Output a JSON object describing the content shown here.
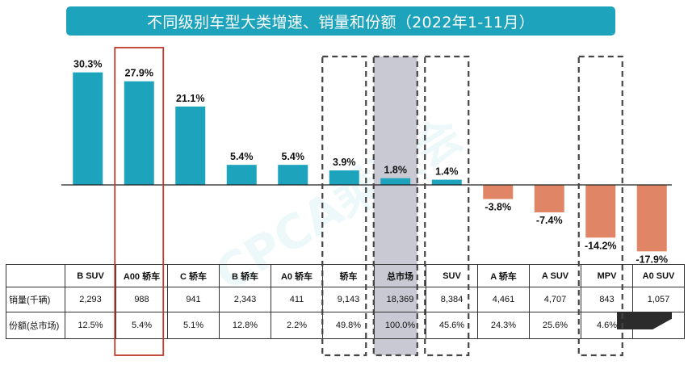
{
  "title": "不同级别车型大类增速、销量和份额（2022年1-11月）",
  "colors": {
    "header": "#1ea3bd",
    "positive": "#1ea3bd",
    "negative": "#e08565",
    "highlight_red": "#c0392b",
    "highlight_dash": "#444444",
    "total_fill": "#c8c9d2"
  },
  "chart_data": {
    "type": "bar",
    "categories": [
      "B SUV",
      "A00 轿车",
      "C 轿车",
      "B 轿车",
      "A0 轿车",
      "轿车",
      "总市场",
      "SUV",
      "A 轿车",
      "A SUV",
      "MPV",
      "A0 SUV"
    ],
    "values": [
      30.3,
      27.9,
      21.1,
      5.4,
      5.4,
      3.9,
      1.8,
      1.4,
      -3.8,
      -7.4,
      -14.2,
      -17.9
    ],
    "labels": [
      "30.3%",
      "27.9%",
      "21.1%",
      "5.4%",
      "5.4%",
      "3.9%",
      "1.8%",
      "1.4%",
      "-3.8%",
      "-7.4%",
      "-14.2%",
      "-17.9%"
    ],
    "unit": "%",
    "highlight_red": [
      "A00 轿车"
    ],
    "highlight_dashed": [
      "轿车",
      "总市场",
      "SUV",
      "MPV"
    ],
    "highlight_shaded": [
      "总市场"
    ],
    "grid": false
  },
  "table": {
    "row_labels": [
      "销量(千辆)",
      "份额(总市场)"
    ],
    "sales": [
      "2,293",
      "988",
      "941",
      "2,343",
      "411",
      "9,143",
      "18,369",
      "8,384",
      "4,461",
      "4,707",
      "843",
      "1,057"
    ],
    "share": [
      "12.5%",
      "5.4%",
      "5.1%",
      "12.8%",
      "2.2%",
      "49.8%",
      "100.0%",
      "45.6%",
      "24.3%",
      "25.6%",
      "4.6%",
      ""
    ]
  },
  "watermark": "CPCA乘联会"
}
